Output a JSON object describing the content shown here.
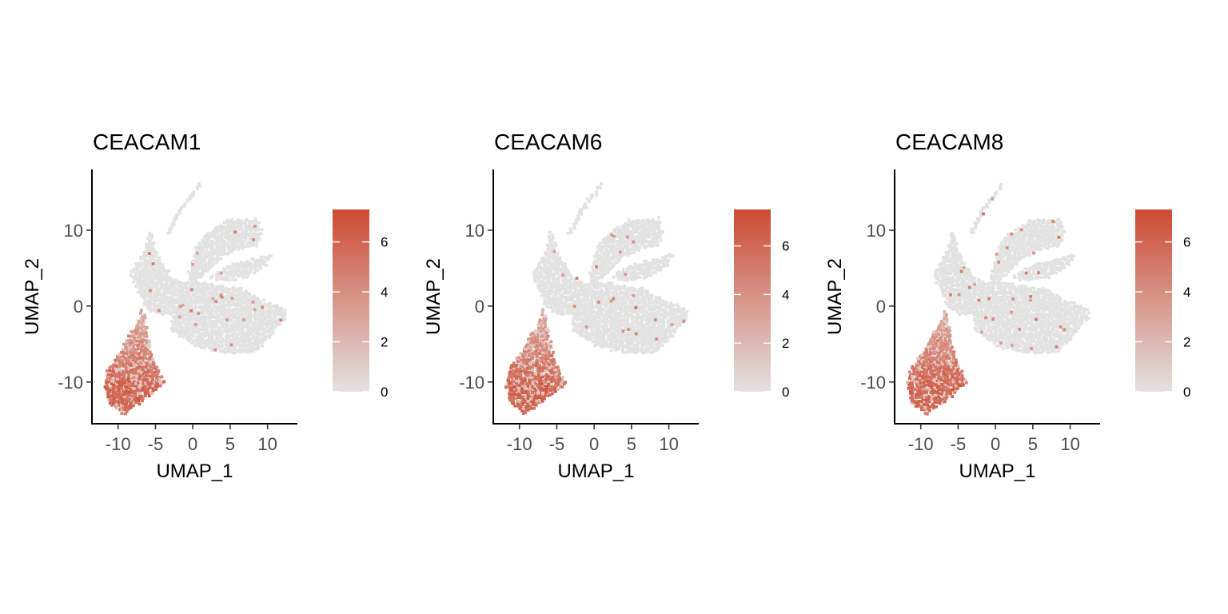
{
  "colors": {
    "low": "#e2e2e2",
    "high": "#cd4a32",
    "background": "#ffffff",
    "axis": "#000000",
    "tick_text": "#4d4d4d"
  },
  "chart_data": [
    {
      "type": "scatter",
      "title": "CEACAM1",
      "xlabel": "UMAP_1",
      "ylabel": "UMAP_2",
      "xlim": [
        -13.5,
        14
      ],
      "ylim": [
        -15.5,
        18
      ],
      "x_ticks": [
        -10,
        -5,
        0,
        5,
        10
      ],
      "x_tick_labels": [
        "-10",
        "-5",
        "0",
        "5",
        "10"
      ],
      "y_ticks": [
        -10,
        0,
        10
      ],
      "y_tick_labels": [
        "-10",
        "0",
        "10"
      ],
      "grid": false,
      "legend": {
        "type": "colorbar",
        "placement": "right",
        "range": [
          0,
          7.3
        ],
        "ticks": [
          0,
          2,
          4,
          6
        ],
        "tick_labels": [
          "0",
          "2",
          "4",
          "6"
        ]
      },
      "expression_pattern": {
        "high_region": "lower-left lobe (UMAP_1 -12 to -4, UMAP_2 -14 to -2)",
        "max_value": 7.3,
        "background_value": 0
      }
    },
    {
      "type": "scatter",
      "title": "CEACAM6",
      "xlabel": "UMAP_1",
      "ylabel": "UMAP_2",
      "xlim": [
        -13.5,
        14
      ],
      "ylim": [
        -15.5,
        18
      ],
      "x_ticks": [
        -10,
        -5,
        0,
        5,
        10
      ],
      "x_tick_labels": [
        "-10",
        "-5",
        "0",
        "5",
        "10"
      ],
      "y_ticks": [
        -10,
        0,
        10
      ],
      "y_tick_labels": [
        "-10",
        "0",
        "10"
      ],
      "grid": false,
      "legend": {
        "type": "colorbar",
        "placement": "right",
        "range": [
          0,
          7.5
        ],
        "ticks": [
          0,
          2,
          4,
          6
        ],
        "tick_labels": [
          "0",
          "2",
          "4",
          "6"
        ]
      },
      "expression_pattern": {
        "high_region": "lower-left lobe (UMAP_1 -12 to -4, UMAP_2 -14 to -2)",
        "max_value": 7.5,
        "background_value": 0
      }
    },
    {
      "type": "scatter",
      "title": "CEACAM8",
      "xlabel": "UMAP_1",
      "ylabel": "UMAP_2",
      "xlim": [
        -13.5,
        14
      ],
      "ylim": [
        -15.5,
        18
      ],
      "x_ticks": [
        -10,
        -5,
        0,
        5,
        10
      ],
      "x_tick_labels": [
        "-10",
        "-5",
        "0",
        "5",
        "10"
      ],
      "y_ticks": [
        -10,
        0,
        10
      ],
      "y_tick_labels": [
        "-10",
        "0",
        "10"
      ],
      "grid": false,
      "legend": {
        "type": "colorbar",
        "placement": "right",
        "range": [
          0,
          7.3
        ],
        "ticks": [
          0,
          2,
          4,
          6
        ],
        "tick_labels": [
          "0",
          "2",
          "4",
          "6"
        ]
      },
      "expression_pattern": {
        "high_region": "lower-left lobe (UMAP_1 -12 to -4, UMAP_2 -14 to -2)",
        "max_value": 7.3,
        "background_value": 0
      }
    }
  ]
}
